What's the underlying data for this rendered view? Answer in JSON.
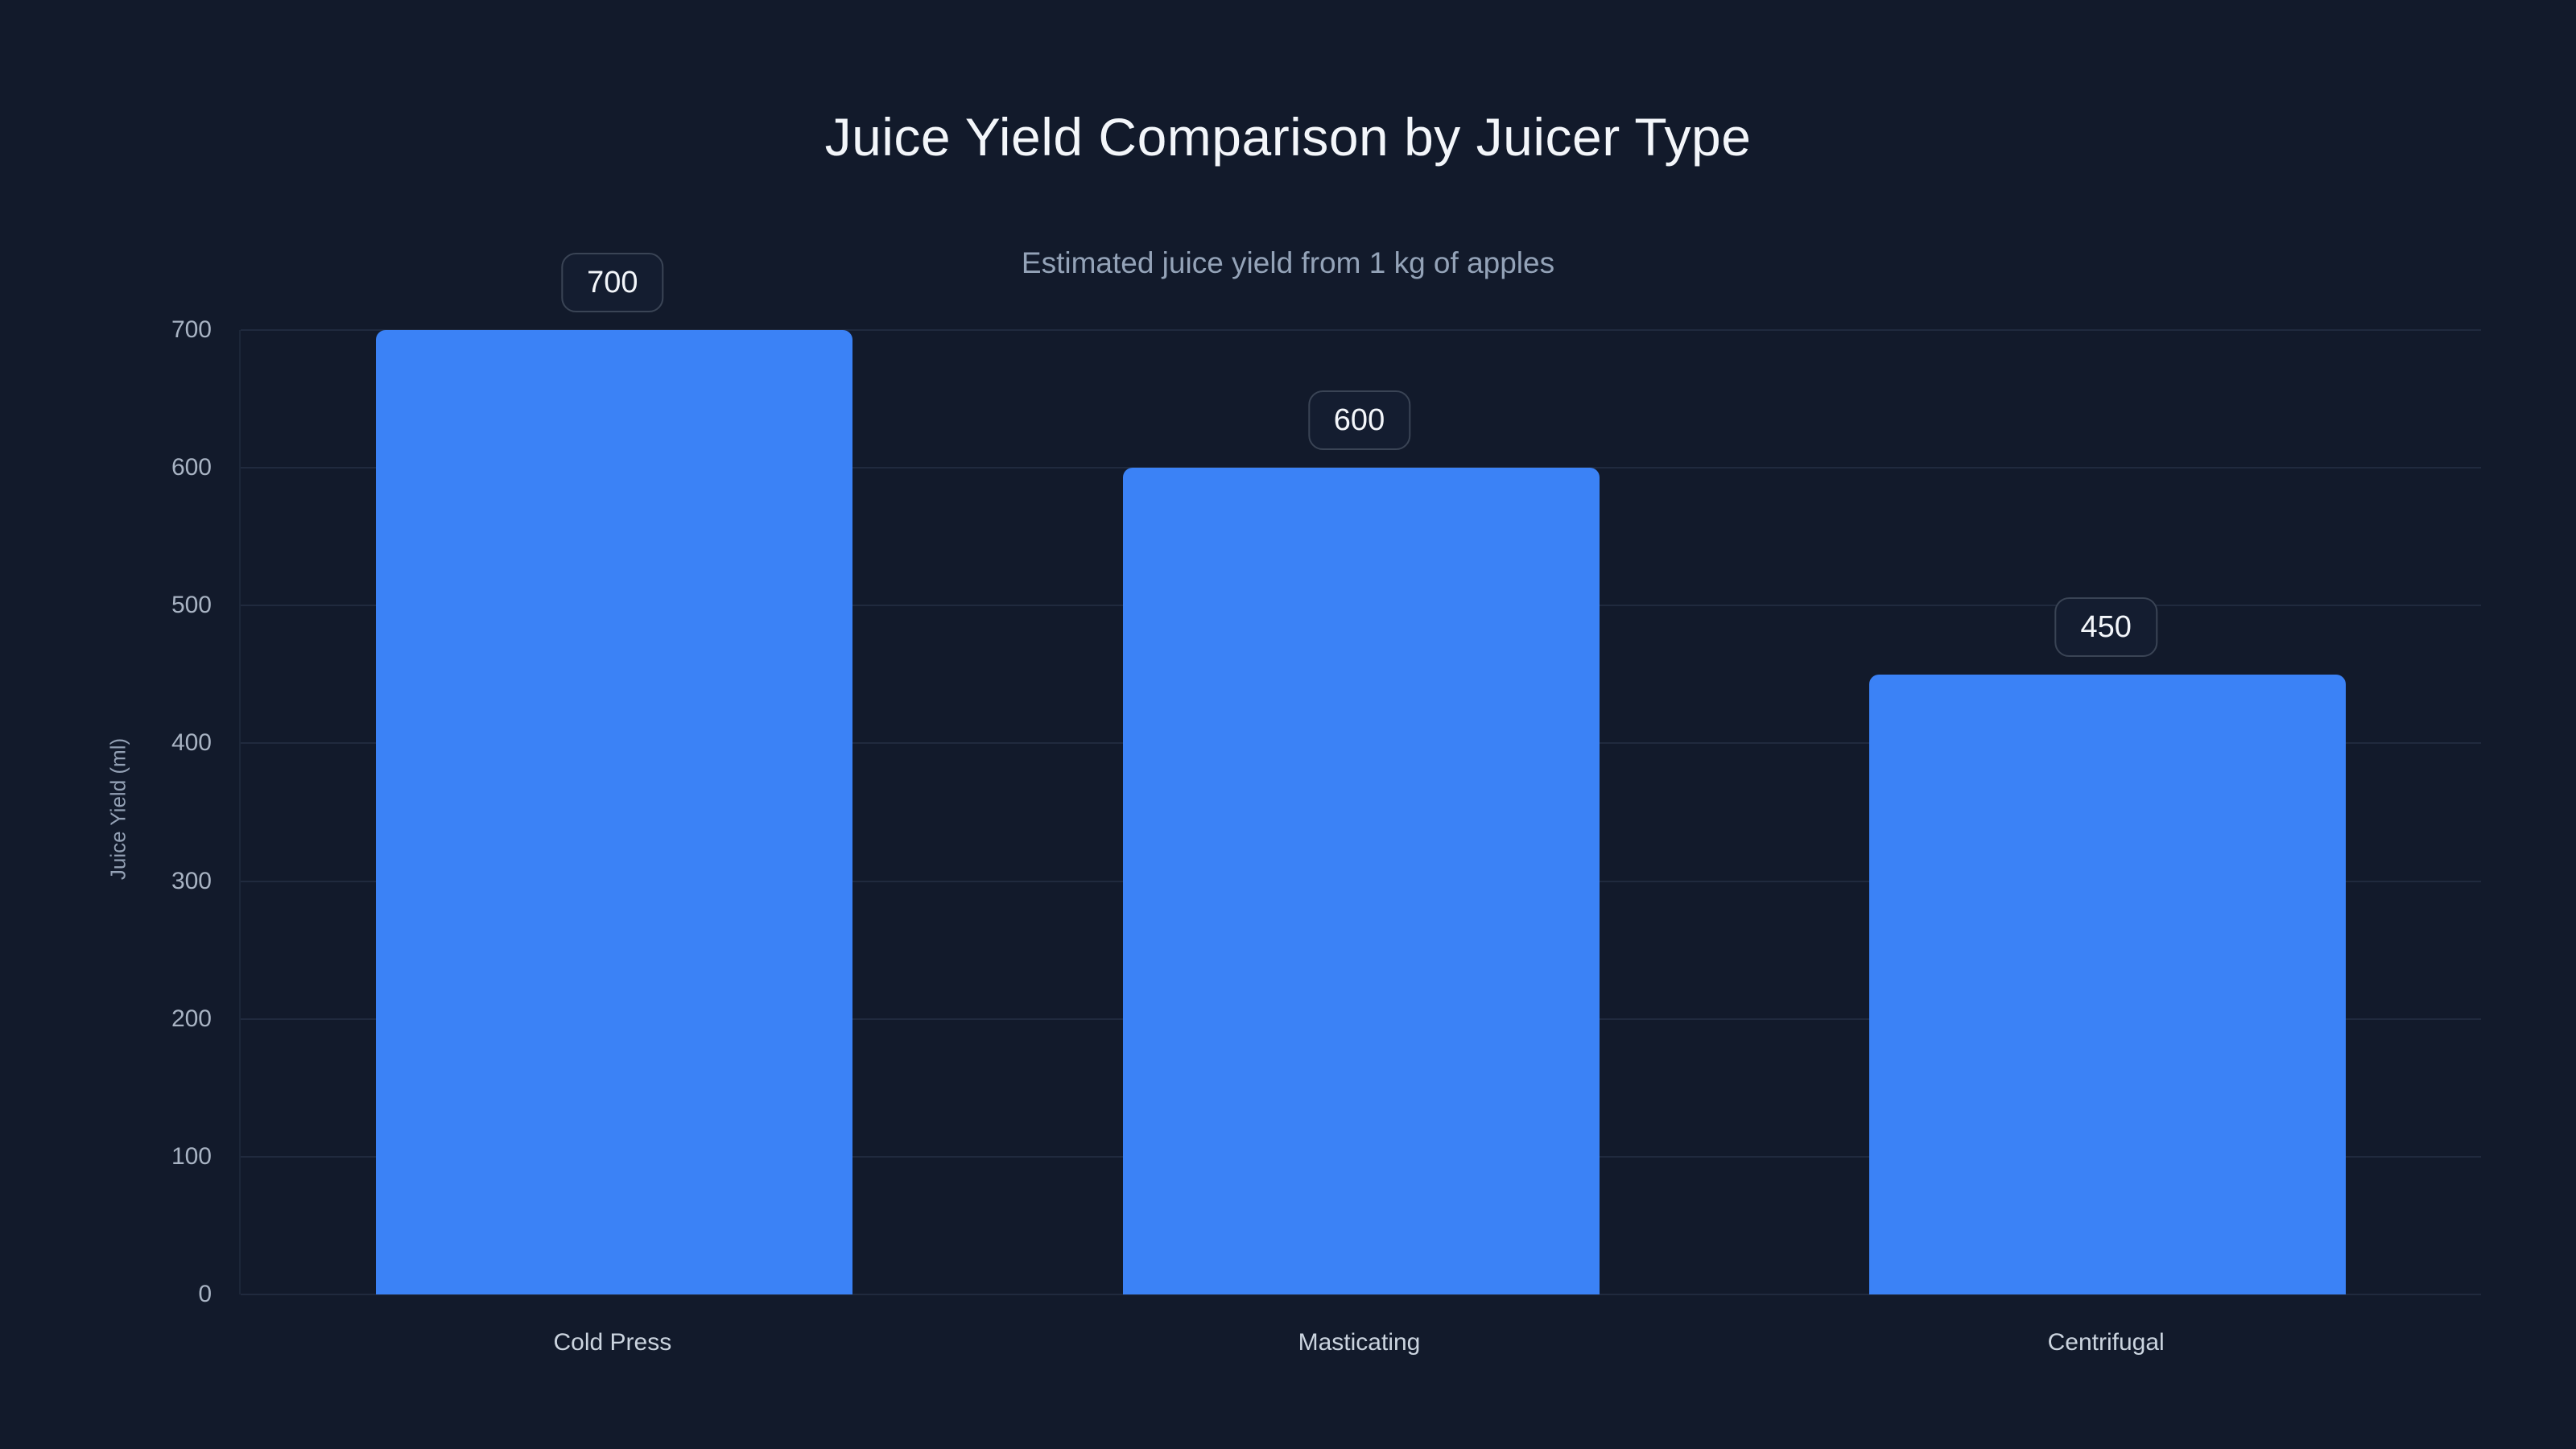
{
  "chart_data": {
    "type": "bar",
    "title": "Juice Yield Comparison by Juicer Type",
    "subtitle": "Estimated juice yield from 1 kg of apples",
    "categories": [
      "Cold Press",
      "Masticating",
      "Centrifugal"
    ],
    "values": [
      700,
      600,
      450
    ],
    "value_labels": [
      "700",
      "600",
      "450"
    ],
    "xlabel": "",
    "ylabel": "Juice Yield (ml)",
    "ylim": [
      0,
      700
    ],
    "ytick_step": 100,
    "ytick_labels": [
      "0",
      "100",
      "200",
      "300",
      "400",
      "500",
      "600",
      "700"
    ],
    "grid": true,
    "legend": false
  },
  "colors": {
    "background": "#121a2b",
    "bar": "#3b82f6",
    "gridline": "#202a3e",
    "title": "#f3f6fa",
    "subtitle": "#94a3b8",
    "tick_label": "#a8b3c3",
    "category_label": "#cbd4df",
    "value_box_border": "#3a4455",
    "value_box_bg": "#141d30",
    "value_box_text": "#f3f6fa"
  }
}
